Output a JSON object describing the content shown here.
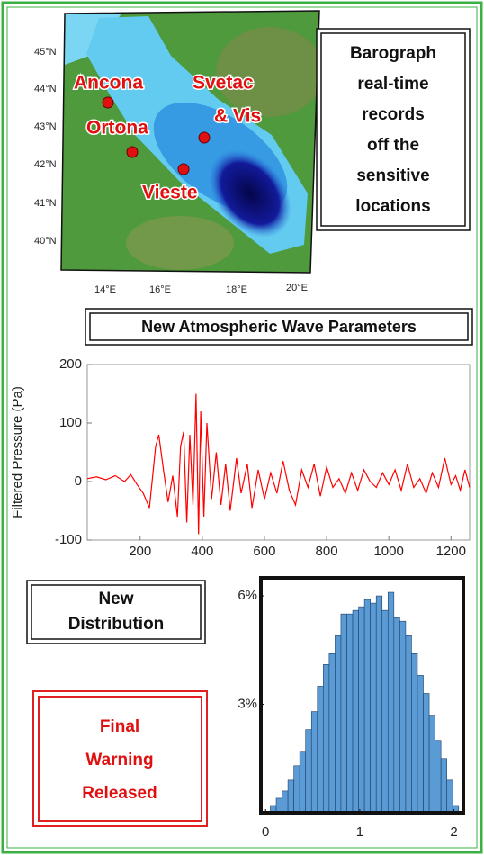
{
  "map": {
    "latitude_labels": [
      "45°N",
      "44°N",
      "43°N",
      "42°N",
      "41°N",
      "40°N"
    ],
    "longitude_labels": [
      "14°E",
      "16°E",
      "18°E",
      "20°E"
    ],
    "locations": [
      "Ancona",
      "Ortona",
      "Svetac",
      "& Vis",
      "Vieste"
    ]
  },
  "boxes": {
    "barograph": [
      "Barograph",
      "real-time",
      "records",
      "off the",
      "sensitive",
      "locations"
    ],
    "parameters": "New Atmospheric Wave Parameters",
    "distribution": [
      "New",
      "Distribution"
    ],
    "warning": [
      "Final",
      "Warning",
      "Released"
    ]
  },
  "chart_data": [
    {
      "type": "line",
      "ylabel": "Filtered Pressure (Pa)",
      "color": "#ff0000",
      "x": [
        30,
        60,
        90,
        120,
        150,
        170,
        190,
        210,
        230,
        250,
        260,
        275,
        290,
        305,
        320,
        330,
        340,
        350,
        360,
        370,
        380,
        388,
        395,
        405,
        415,
        430,
        445,
        460,
        475,
        490,
        510,
        525,
        545,
        560,
        580,
        600,
        620,
        640,
        660,
        680,
        700,
        720,
        740,
        760,
        780,
        800,
        820,
        840,
        860,
        880,
        900,
        920,
        940,
        960,
        980,
        1000,
        1020,
        1040,
        1060,
        1080,
        1100,
        1120,
        1140,
        1160,
        1180,
        1200,
        1215,
        1230,
        1245,
        1260
      ],
      "values": [
        5,
        8,
        3,
        10,
        0,
        12,
        -5,
        -20,
        -45,
        60,
        80,
        20,
        -35,
        10,
        -60,
        60,
        85,
        -70,
        80,
        -40,
        150,
        -90,
        120,
        -60,
        100,
        -30,
        50,
        -40,
        30,
        -50,
        40,
        -20,
        30,
        -45,
        20,
        -30,
        15,
        -20,
        35,
        -15,
        -40,
        20,
        -10,
        30,
        -25,
        25,
        -10,
        5,
        -20,
        15,
        -15,
        20,
        0,
        -10,
        15,
        -5,
        20,
        -15,
        30,
        -10,
        5,
        -20,
        15,
        -10,
        40,
        -5,
        10,
        -15,
        20,
        -10
      ],
      "xlim": [
        30,
        1260
      ],
      "ylim": [
        -100,
        200
      ],
      "xticks": [
        200,
        400,
        600,
        800,
        1000,
        1200
      ],
      "yticks": [
        -100,
        0,
        100,
        200
      ]
    },
    {
      "type": "histogram",
      "color": "#5b9bd5",
      "bins": [
        0.05,
        0.1125,
        0.175,
        0.2375,
        0.3,
        0.3625,
        0.425,
        0.4875,
        0.55,
        0.6125,
        0.675,
        0.7375,
        0.8,
        0.8625,
        0.925,
        0.9875,
        1.05,
        1.1125,
        1.175,
        1.2375,
        1.3,
        1.3625,
        1.425,
        1.4875,
        1.55,
        1.6125,
        1.675,
        1.7375,
        1.8,
        1.8625,
        1.925,
        1.9875,
        2.05
      ],
      "values": [
        0.2,
        0.4,
        0.6,
        0.9,
        1.3,
        1.7,
        2.3,
        2.8,
        3.5,
        4.1,
        4.4,
        4.9,
        5.5,
        5.5,
        5.6,
        5.7,
        5.9,
        5.8,
        6.0,
        5.6,
        6.1,
        5.4,
        5.3,
        4.9,
        4.4,
        3.8,
        3.3,
        2.7,
        2.0,
        1.5,
        0.9,
        0.2
      ],
      "xlim": [
        -0.05,
        2.1
      ],
      "ylim": [
        0,
        6.5
      ],
      "xticks": [
        0,
        1,
        2
      ],
      "yticks": [
        {
          "value": 6,
          "label": "6%"
        },
        {
          "value": 3,
          "label": "3%"
        }
      ]
    }
  ]
}
